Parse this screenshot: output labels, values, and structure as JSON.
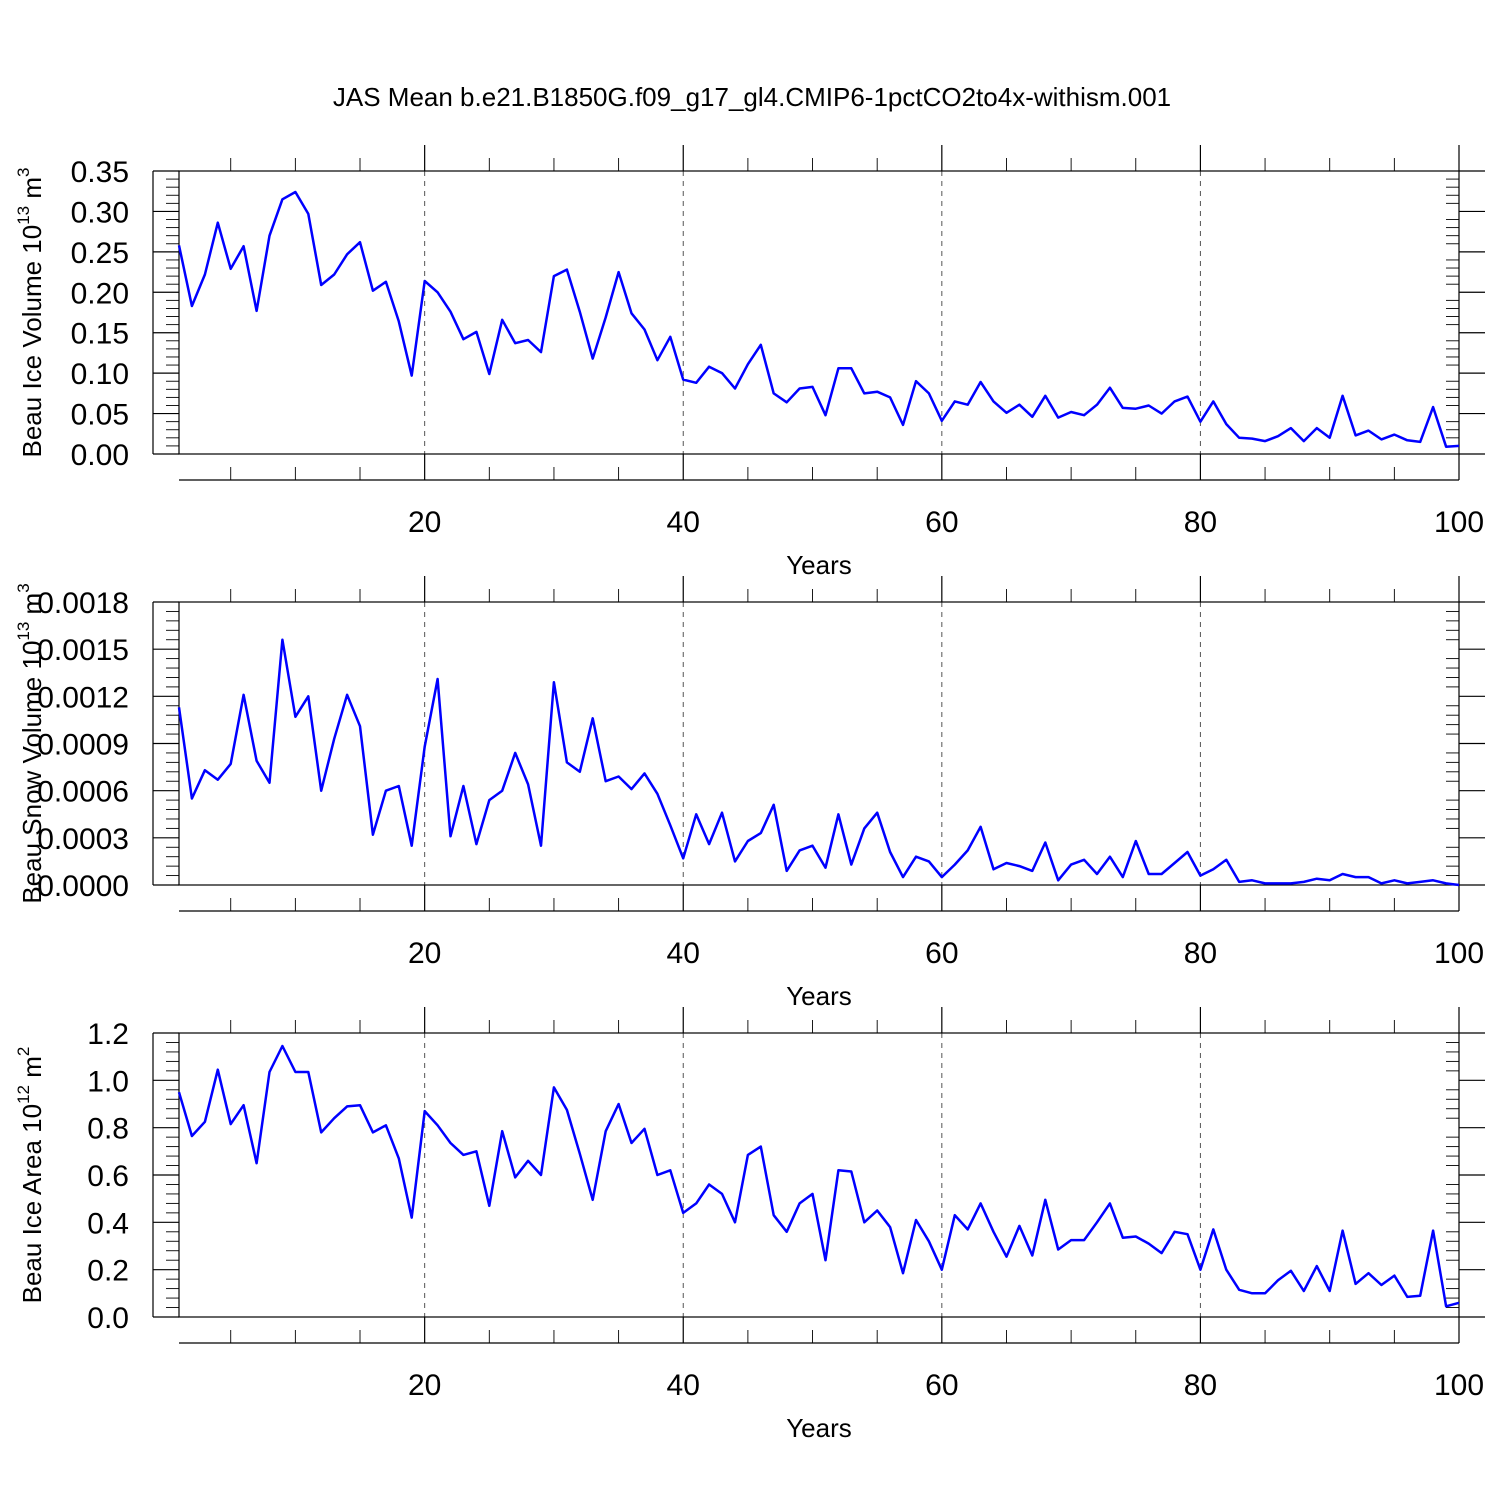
{
  "title": "JAS Mean b.e21.B1850G.f09_g17_gl4.CMIP6-1pctCO2to4x-withism.001",
  "colors": {
    "series": "#0000ff",
    "axes": "#000000",
    "grid": "#555555"
  },
  "chart_data": [
    {
      "type": "line",
      "ylabel": "Beau Ice Volume 10",
      "ylabel_exp": "13",
      "ylabel_unit": " m",
      "ylabel_unit_exp": "3",
      "xlabel": "Years",
      "xlim": [
        1,
        100
      ],
      "ylim": [
        0,
        0.35
      ],
      "xticks": [
        20,
        40,
        60,
        80,
        100
      ],
      "xtick_labels": [
        "20",
        "40",
        "60",
        "80",
        "100"
      ],
      "yticks": [
        0,
        0.05,
        0.1,
        0.15,
        0.2,
        0.25,
        0.3,
        0.35
      ],
      "ytick_labels": [
        "0.00",
        "0.05",
        "0.10",
        "0.15",
        "0.20",
        "0.25",
        "0.30",
        "0.35"
      ],
      "grid": "dashed vertical at major x ticks",
      "x_start": 1,
      "values": [
        0.258,
        0.183,
        0.222,
        0.286,
        0.229,
        0.257,
        0.177,
        0.27,
        0.315,
        0.324,
        0.297,
        0.209,
        0.222,
        0.247,
        0.262,
        0.202,
        0.213,
        0.164,
        0.097,
        0.214,
        0.2,
        0.176,
        0.142,
        0.151,
        0.099,
        0.166,
        0.137,
        0.141,
        0.126,
        0.22,
        0.228,
        0.176,
        0.118,
        0.169,
        0.225,
        0.174,
        0.154,
        0.116,
        0.145,
        0.092,
        0.088,
        0.108,
        0.1,
        0.081,
        0.111,
        0.135,
        0.075,
        0.064,
        0.081,
        0.083,
        0.048,
        0.106,
        0.106,
        0.075,
        0.077,
        0.07,
        0.036,
        0.09,
        0.075,
        0.041,
        0.065,
        0.061,
        0.089,
        0.065,
        0.051,
        0.061,
        0.046,
        0.072,
        0.045,
        0.052,
        0.048,
        0.061,
        0.082,
        0.057,
        0.056,
        0.06,
        0.05,
        0.065,
        0.071,
        0.04,
        0.065,
        0.037,
        0.02,
        0.019,
        0.016,
        0.022,
        0.032,
        0.016,
        0.032,
        0.02,
        0.072,
        0.023,
        0.029,
        0.018,
        0.024,
        0.017,
        0.015,
        0.058,
        0.009,
        0.01
      ]
    },
    {
      "type": "line",
      "ylabel": "Beau Snow Volume 10",
      "ylabel_exp": "13",
      "ylabel_unit": " m",
      "ylabel_unit_exp": "3",
      "xlabel": "Years",
      "xlim": [
        1,
        100
      ],
      "ylim": [
        0,
        0.0018
      ],
      "xticks": [
        20,
        40,
        60,
        80,
        100
      ],
      "xtick_labels": [
        "20",
        "40",
        "60",
        "80",
        "100"
      ],
      "yticks": [
        0,
        0.0003,
        0.0006,
        0.0009,
        0.0012,
        0.0015,
        0.0018
      ],
      "ytick_labels": [
        "0.0000",
        "0.0003",
        "0.0006",
        "0.0009",
        "0.0012",
        "0.0015",
        "0.0018"
      ],
      "grid": "dashed vertical at major x ticks",
      "x_start": 1,
      "values": [
        0.00113,
        0.00055,
        0.00073,
        0.00067,
        0.00077,
        0.00121,
        0.00079,
        0.00065,
        0.00156,
        0.00107,
        0.0012,
        0.0006,
        0.00093,
        0.00121,
        0.00101,
        0.00032,
        0.0006,
        0.00063,
        0.00025,
        0.00088,
        0.00131,
        0.00031,
        0.00063,
        0.00026,
        0.00054,
        0.0006,
        0.00084,
        0.00064,
        0.00025,
        0.00129,
        0.00078,
        0.00072,
        0.00106,
        0.00066,
        0.00069,
        0.00061,
        0.00071,
        0.00058,
        0.00038,
        0.00017,
        0.00045,
        0.00026,
        0.00046,
        0.00015,
        0.00028,
        0.00033,
        0.00051,
        9e-05,
        0.00022,
        0.00025,
        0.00011,
        0.00045,
        0.00013,
        0.00036,
        0.00046,
        0.00021,
        5e-05,
        0.00018,
        0.00015,
        5e-05,
        0.00013,
        0.00022,
        0.00037,
        0.0001,
        0.00014,
        0.00012,
        9e-05,
        0.00027,
        3e-05,
        0.00013,
        0.00016,
        7e-05,
        0.00018,
        5e-05,
        0.00028,
        7e-05,
        7e-05,
        0.00014,
        0.00021,
        6e-05,
        0.0001,
        0.00016,
        2e-05,
        3e-05,
        1e-05,
        1e-05,
        1e-05,
        2e-05,
        4e-05,
        3e-05,
        7e-05,
        5e-05,
        5e-05,
        1e-05,
        3e-05,
        1e-05,
        2e-05,
        3e-05,
        1e-05,
        0.0
      ]
    },
    {
      "type": "line",
      "ylabel": "Beau Ice Area 10",
      "ylabel_exp": "12",
      "ylabel_unit": " m",
      "ylabel_unit_exp": "2",
      "xlabel": "Years",
      "xlim": [
        1,
        100
      ],
      "ylim": [
        0,
        1.2
      ],
      "xticks": [
        20,
        40,
        60,
        80,
        100
      ],
      "xtick_labels": [
        "20",
        "40",
        "60",
        "80",
        "100"
      ],
      "yticks": [
        0,
        0.2,
        0.4,
        0.6,
        0.8,
        1.0,
        1.2
      ],
      "ytick_labels": [
        "0.0",
        "0.2",
        "0.4",
        "0.6",
        "0.8",
        "1.0",
        "1.2"
      ],
      "grid": "dashed vertical at major x ticks",
      "x_start": 1,
      "values": [
        0.95,
        0.765,
        0.825,
        1.045,
        0.815,
        0.895,
        0.65,
        1.035,
        1.145,
        1.035,
        1.035,
        0.78,
        0.84,
        0.89,
        0.895,
        0.78,
        0.81,
        0.67,
        0.42,
        0.87,
        0.81,
        0.735,
        0.685,
        0.7,
        0.47,
        0.785,
        0.59,
        0.66,
        0.6,
        0.97,
        0.875,
        0.69,
        0.495,
        0.785,
        0.9,
        0.735,
        0.795,
        0.6,
        0.62,
        0.44,
        0.48,
        0.56,
        0.52,
        0.4,
        0.685,
        0.72,
        0.43,
        0.36,
        0.48,
        0.52,
        0.24,
        0.62,
        0.615,
        0.4,
        0.45,
        0.38,
        0.185,
        0.41,
        0.32,
        0.2,
        0.43,
        0.37,
        0.48,
        0.36,
        0.255,
        0.385,
        0.26,
        0.495,
        0.285,
        0.325,
        0.325,
        0.4,
        0.48,
        0.335,
        0.34,
        0.31,
        0.27,
        0.36,
        0.35,
        0.2,
        0.37,
        0.2,
        0.115,
        0.1,
        0.1,
        0.155,
        0.195,
        0.11,
        0.215,
        0.11,
        0.365,
        0.14,
        0.185,
        0.135,
        0.175,
        0.085,
        0.09,
        0.365,
        0.045,
        0.06
      ]
    }
  ]
}
